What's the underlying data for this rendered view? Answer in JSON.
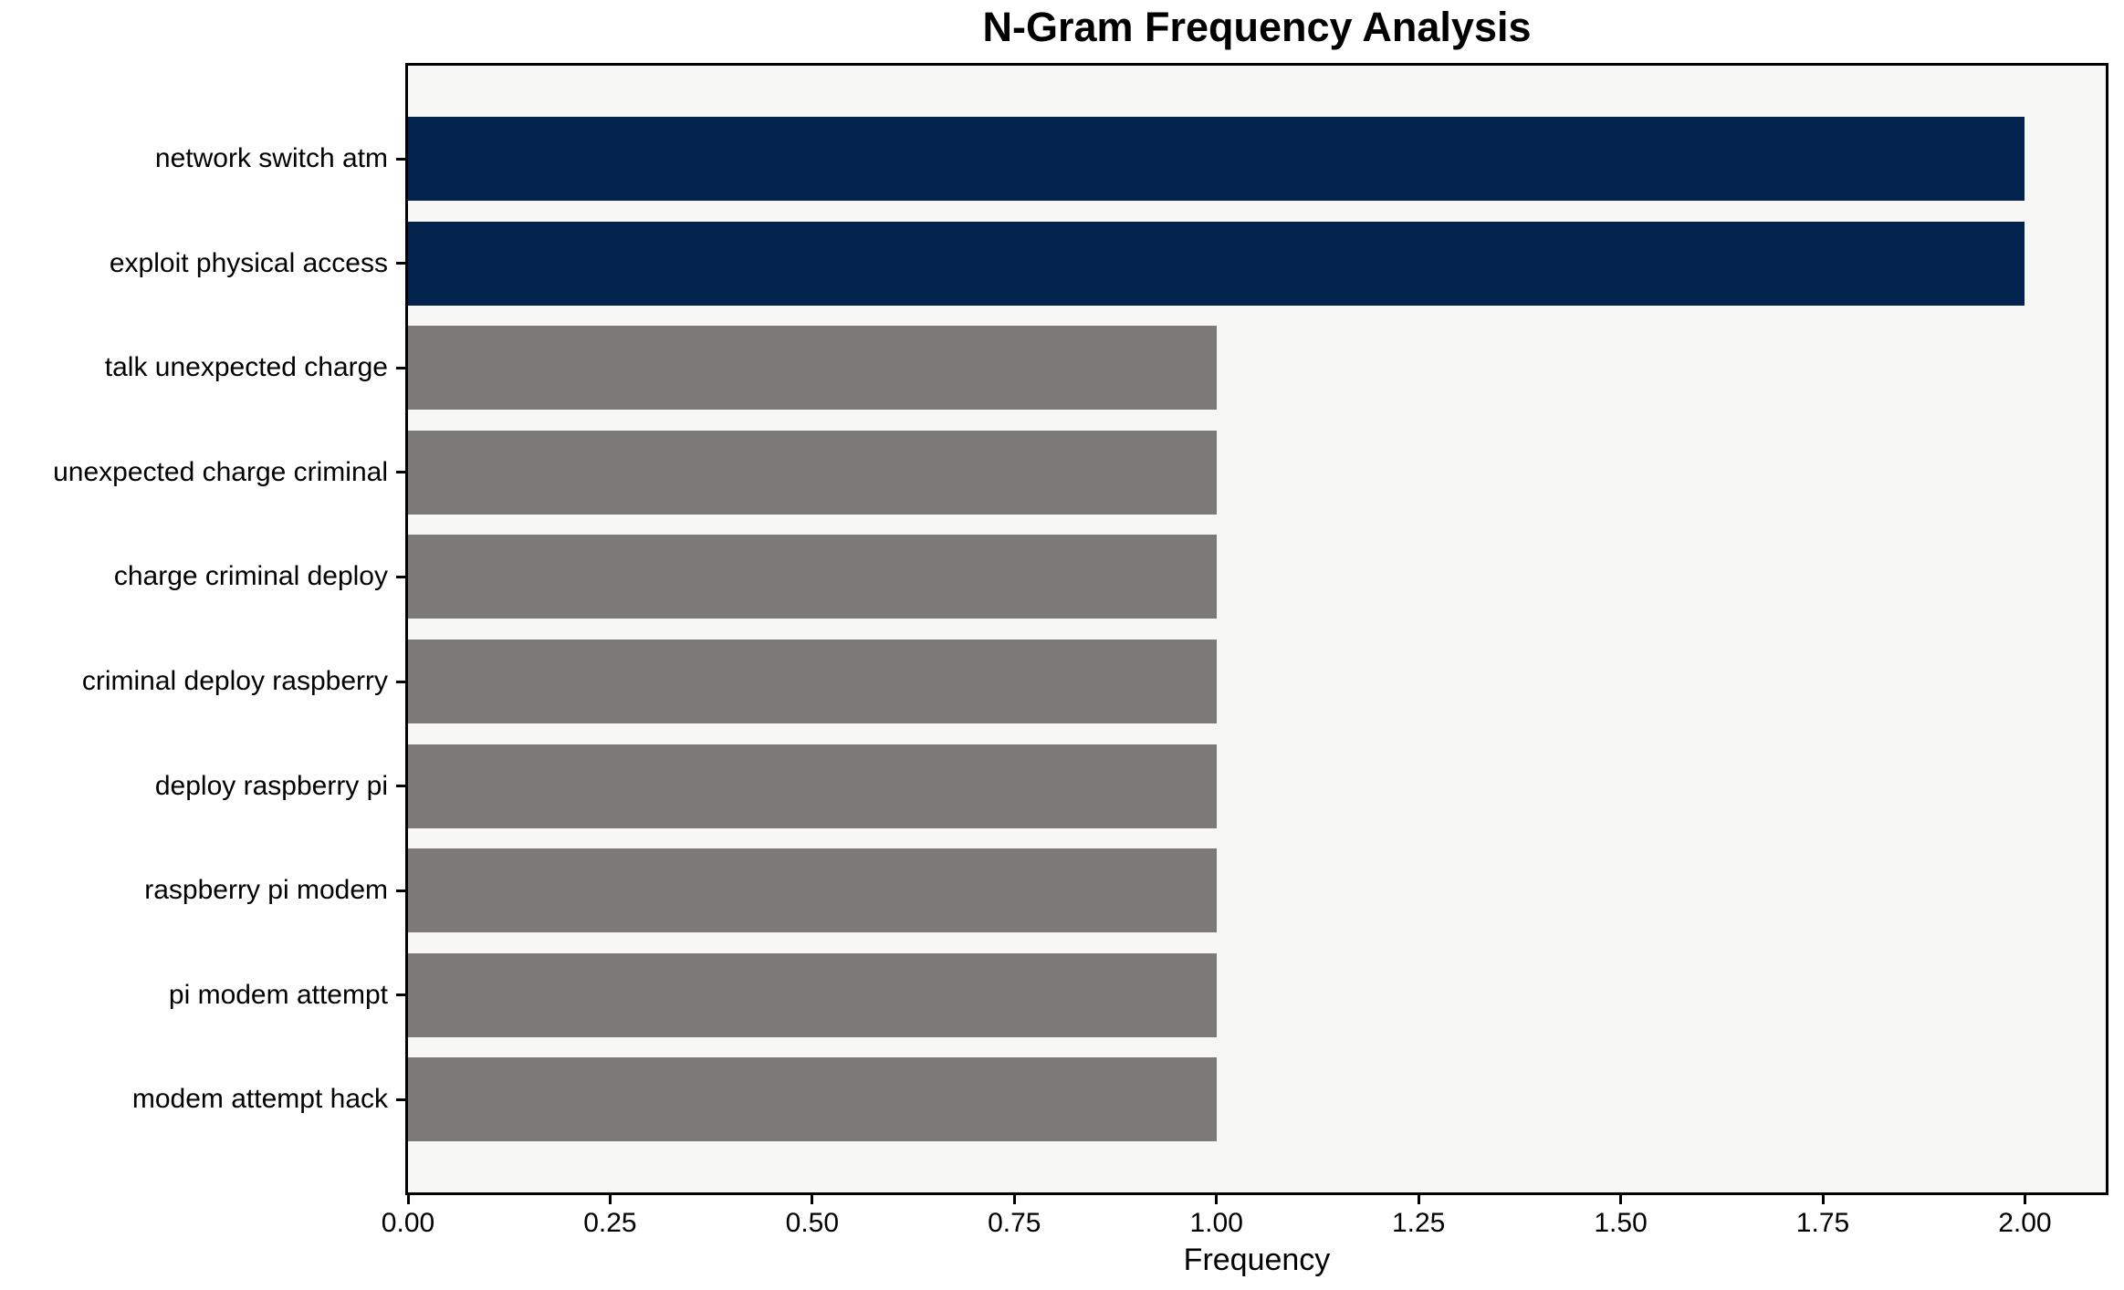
{
  "title": "N-Gram Frequency Analysis",
  "chart_data": {
    "type": "bar",
    "orientation": "horizontal",
    "title": "N-Gram Frequency Analysis",
    "xlabel": "Frequency",
    "ylabel": "",
    "categories": [
      "network switch atm",
      "exploit physical access",
      "talk unexpected charge",
      "unexpected charge criminal",
      "charge criminal deploy",
      "criminal deploy raspberry",
      "deploy raspberry pi",
      "raspberry pi modem",
      "pi modem attempt",
      "modem attempt hack"
    ],
    "values": [
      2,
      2,
      1,
      1,
      1,
      1,
      1,
      1,
      1,
      1
    ],
    "bar_colors": [
      "#02234e",
      "#02234e",
      "#7b7a77",
      "#7b7a77",
      "#7b7a77",
      "#7b7a77",
      "#7b7a77",
      "#7b7a77",
      "#7b7a77",
      "#7b7a77"
    ],
    "xlim": [
      0,
      2.1
    ],
    "xticks": [
      0,
      0.25,
      0.5,
      0.75,
      1,
      1.25,
      1.5,
      1.75,
      2
    ],
    "xtick_labels": [
      "0.00",
      "0.25",
      "0.50",
      "0.75",
      "1.00",
      "1.25",
      "1.50",
      "1.75",
      "2.00"
    ],
    "grid": false,
    "legend": "none",
    "colors": {
      "bar_highlight": "#02234e",
      "bar_default": "#7b7a77",
      "plot_background": "#f7f7f6",
      "figure_background": "#ffffff",
      "spine": "#000000",
      "text": "#000000"
    }
  }
}
